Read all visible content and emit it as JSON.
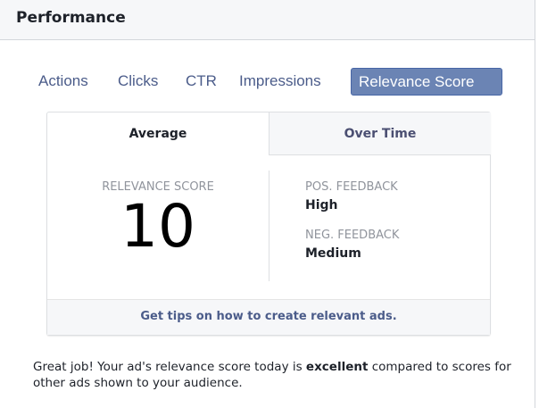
{
  "header": {
    "title": "Performance"
  },
  "tabs": [
    {
      "label": "Actions"
    },
    {
      "label": "Clicks"
    },
    {
      "label": "CTR"
    },
    {
      "label": "Impressions"
    },
    {
      "label": "Relevance Score",
      "active": true
    }
  ],
  "card": {
    "tabs": [
      {
        "label": "Average",
        "active": true
      },
      {
        "label": "Over Time"
      }
    ],
    "score_label": "RELEVANCE SCORE",
    "score": "10",
    "pos_label": "POS. FEEDBACK",
    "pos_value": "High",
    "neg_label": "NEG. FEEDBACK",
    "neg_value": "Medium",
    "tips_link": "Get tips on how to create relevant ads."
  },
  "message": {
    "pre": "Great job! Your ad's relevance score today is ",
    "bold": "excellent",
    "post": " compared to scores for other ads shown to your audience."
  },
  "colors": {
    "accent": "#6b84b4",
    "link": "#4b5c8a"
  }
}
